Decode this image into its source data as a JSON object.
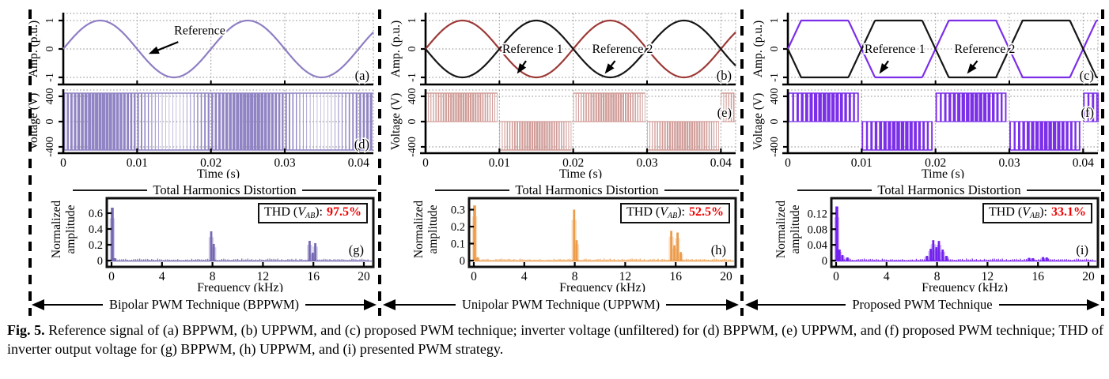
{
  "figure": {
    "caption_label": "Fig. 5.",
    "caption_text": "Reference signal of (a) BPPWM, (b) UPPWM, and (c) proposed PWM technique; inverter voltage (unfiltered) for (d) BPPWM, (e) UPPWM, and (f) proposed PWM technique; THD of inverter output voltage for (g) BPPWM, (h) UPPWM, and (i) presented PWM strategy."
  },
  "shared": {
    "ref_ylabel": "Amp. (p.u.)",
    "ref_yticks": [
      "1",
      "0",
      "-1"
    ],
    "volt_ylabel": "Voltage (V)",
    "volt_yticks": [
      "400",
      "0",
      "-400"
    ],
    "time_xticks": [
      "0",
      "0.01",
      "0.02",
      "0.03",
      "0.04"
    ],
    "time_xlabel": "Time (s)",
    "thd_header": "Total Harmonics Distortion",
    "thd_ylabel_line1": "Normalized",
    "thd_ylabel_line2": "amplitude",
    "freq_xticks": [
      "0",
      "4",
      "8",
      "12",
      "16",
      "20"
    ],
    "freq_xlabel": "Frequency (kHz)",
    "thd_prefix": "THD (",
    "thd_var": "V",
    "thd_sub": "AB",
    "thd_suffix": "):"
  },
  "columns": [
    {
      "technique": "Bipolar PWM Technique (BPPWM)",
      "ref": {
        "panel": "(a)",
        "waves": [
          {
            "shape": "sine",
            "phase": 0,
            "color": "#8F7EC3"
          }
        ],
        "annotations": [
          {
            "text": "Reference",
            "tx": 0.44,
            "ty": 0.24,
            "ax": 0.275,
            "ay": 0.57
          }
        ]
      },
      "volt": {
        "panel": "(d)",
        "panel_pos": "br",
        "mode": "bipolar",
        "color": "#9184C4",
        "slots": 88,
        "dmin": 0.5,
        "damp": 0.4
      },
      "thd": {
        "panel": "(g)",
        "color": "#7668B2",
        "value": "97.5%",
        "ymax": 0.72,
        "yticks": [
          0,
          0.2,
          0.4,
          0.6
        ],
        "peaks": [
          [
            0.06,
            0.67
          ],
          [
            0.25,
            0.03
          ],
          [
            7.9,
            0.37
          ],
          [
            8.1,
            0.21
          ],
          [
            15.7,
            0.25
          ],
          [
            15.95,
            0.1
          ],
          [
            16.15,
            0.22
          ]
        ]
      }
    },
    {
      "technique": "Unipolar PWM Technique (UPPWM)",
      "ref": {
        "panel": "(b)",
        "waves": [
          {
            "shape": "sine",
            "phase": 0,
            "color": "#9C3A37"
          },
          {
            "shape": "sine",
            "phase": 0.5,
            "color": "#161616"
          }
        ],
        "annotations": [
          {
            "text": "Reference 1",
            "tx": 0.345,
            "ty": 0.5,
            "ax": 0.295,
            "ay": 0.85
          },
          {
            "text": "Reference 2",
            "tx": 0.635,
            "ty": 0.5,
            "ax": 0.578,
            "ay": 0.85
          }
        ]
      },
      "volt": {
        "panel": "(e)",
        "panel_pos": "r",
        "mode": "unipolar",
        "color": "#D09D99",
        "n": 30,
        "dmin": 0.22,
        "damp": 0.55
      },
      "thd": {
        "panel": "(h)",
        "color": "#EC9C4B",
        "value": "52.5%",
        "ymax": 0.335,
        "yticks": [
          0,
          0.1,
          0.2,
          0.3
        ],
        "peaks": [
          [
            0.06,
            0.325
          ],
          [
            0.3,
            0.02
          ],
          [
            7.95,
            0.3
          ],
          [
            8.15,
            0.12
          ],
          [
            15.65,
            0.175
          ],
          [
            15.9,
            0.09
          ],
          [
            16.15,
            0.165
          ],
          [
            16.4,
            0.05
          ]
        ]
      }
    },
    {
      "technique": "Proposed PWM Technique",
      "ref": {
        "panel": "(c)",
        "waves": [
          {
            "shape": "trapezoid",
            "phase": 0,
            "color": "#7B2FE9"
          },
          {
            "shape": "trapezoid",
            "phase": 0.5,
            "color": "#161616"
          }
        ],
        "annotations": [
          {
            "text": "Reference 1",
            "tx": 0.345,
            "ty": 0.5,
            "ax": 0.295,
            "ay": 0.85
          },
          {
            "text": "Reference 2",
            "tx": 0.635,
            "ty": 0.5,
            "ax": 0.578,
            "ay": 0.85
          }
        ]
      },
      "volt": {
        "panel": "(f)",
        "panel_pos": "r",
        "mode": "unipolar",
        "color": "#7B2FE9",
        "n": 17,
        "dmin": 0.3,
        "damp": 0.52
      },
      "thd": {
        "panel": "(i)",
        "color": "#7322EE",
        "value": "33.1%",
        "ymax": 0.145,
        "yticks": [
          0,
          0.04,
          0.08,
          0.12
        ],
        "peaks": [
          [
            0.06,
            0.138
          ],
          [
            0.25,
            0.028
          ],
          [
            0.5,
            0.014
          ],
          [
            0.9,
            0.008
          ],
          [
            7.2,
            0.012
          ],
          [
            7.5,
            0.03
          ],
          [
            7.7,
            0.052
          ],
          [
            7.95,
            0.034
          ],
          [
            8.15,
            0.05
          ],
          [
            8.45,
            0.028
          ],
          [
            8.75,
            0.012
          ],
          [
            15.3,
            0.007
          ],
          [
            15.6,
            0.006
          ],
          [
            16.4,
            0.009
          ],
          [
            16.7,
            0.008
          ]
        ]
      }
    }
  ]
}
